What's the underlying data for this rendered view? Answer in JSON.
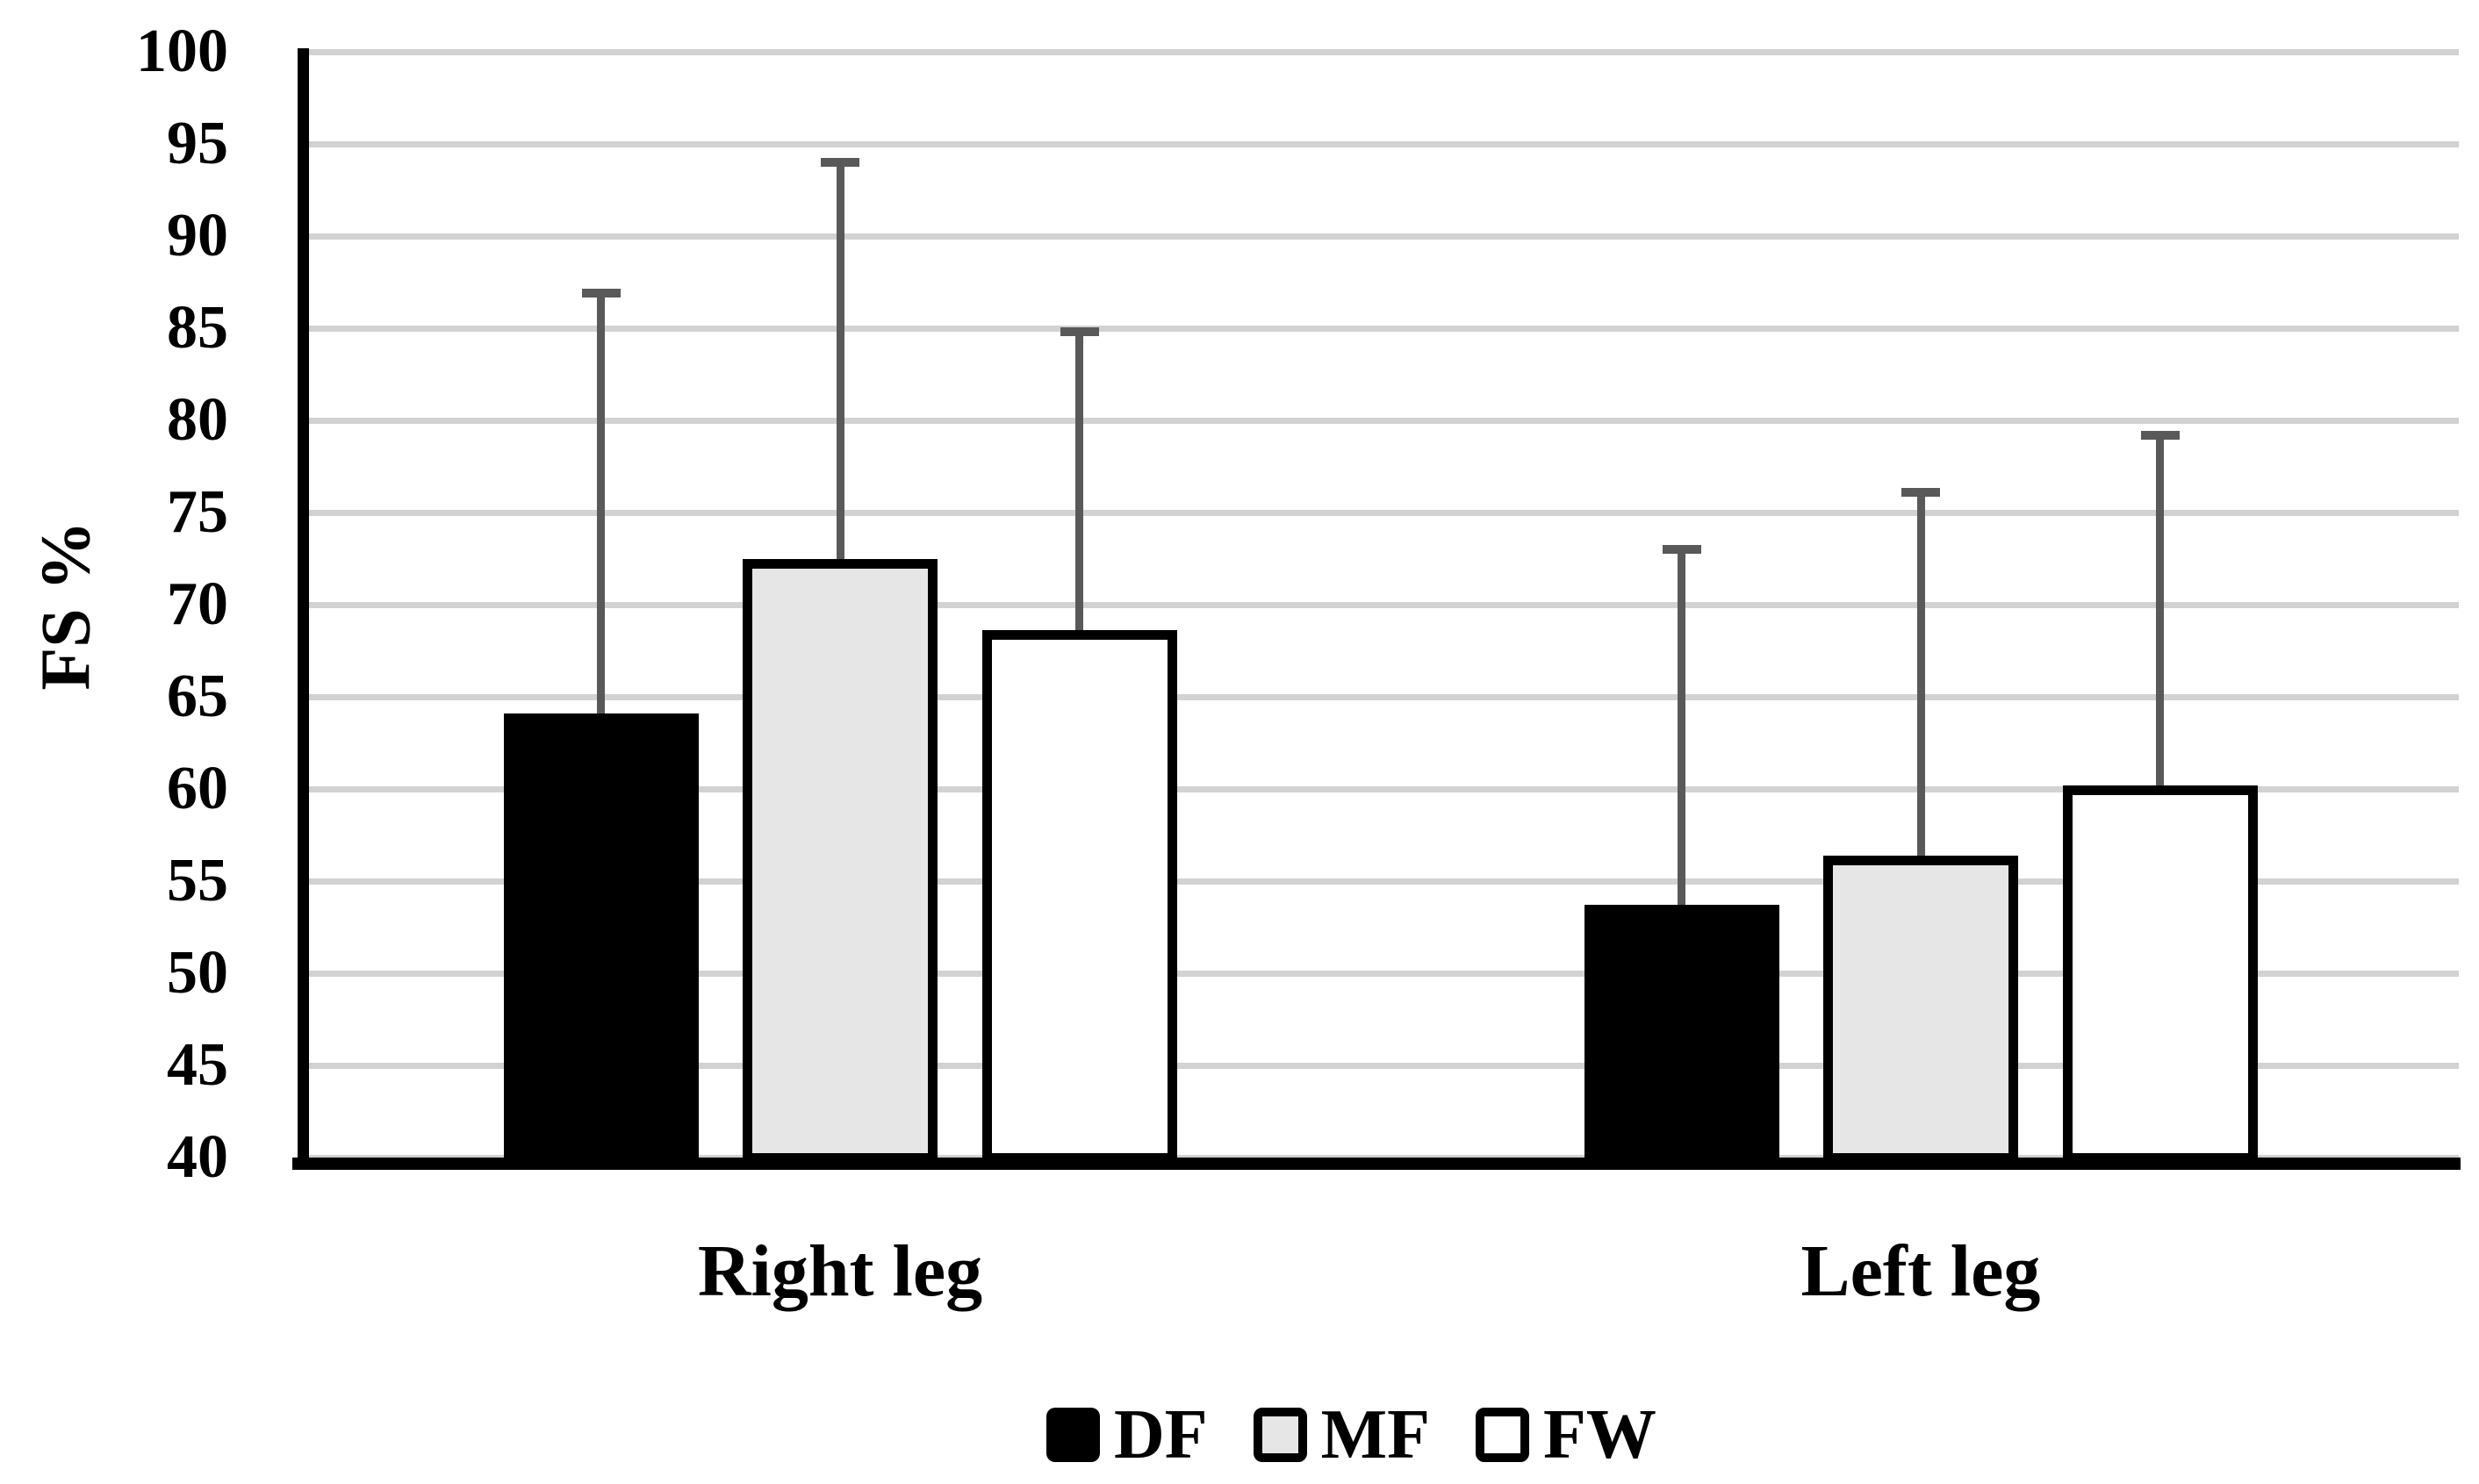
{
  "figure": {
    "background": "#ffffff"
  },
  "chart_data": {
    "type": "bar",
    "title": "",
    "xlabel": "",
    "ylabel": "FS %",
    "categories": [
      "Right leg",
      "Left leg"
    ],
    "series": [
      {
        "name": "DF",
        "fill": "#000000",
        "values": [
          64.1,
          53.7
        ],
        "error_top": [
          86.9,
          73.0
        ]
      },
      {
        "name": "MF",
        "fill": "#e6e6e6",
        "values": [
          72.5,
          56.4
        ],
        "error_top": [
          94.0,
          76.1
        ]
      },
      {
        "name": "FW",
        "fill": "#ffffff",
        "values": [
          68.6,
          60.2
        ],
        "error_top": [
          84.8,
          79.2
        ]
      }
    ],
    "ylim": [
      40,
      100
    ],
    "ytick_step": 5,
    "yticks": [
      100,
      95,
      90,
      85,
      80,
      75,
      70,
      65,
      60,
      55,
      50,
      45,
      40
    ],
    "grid": true,
    "error_bars": "upper-only",
    "legend_position": "bottom-center",
    "colors": {
      "bar_outline": "#000000",
      "error_bar": "#595959",
      "gridline": "#d2d2d2",
      "axis": "#000000",
      "text": "#000000",
      "background": "#ffffff"
    }
  }
}
